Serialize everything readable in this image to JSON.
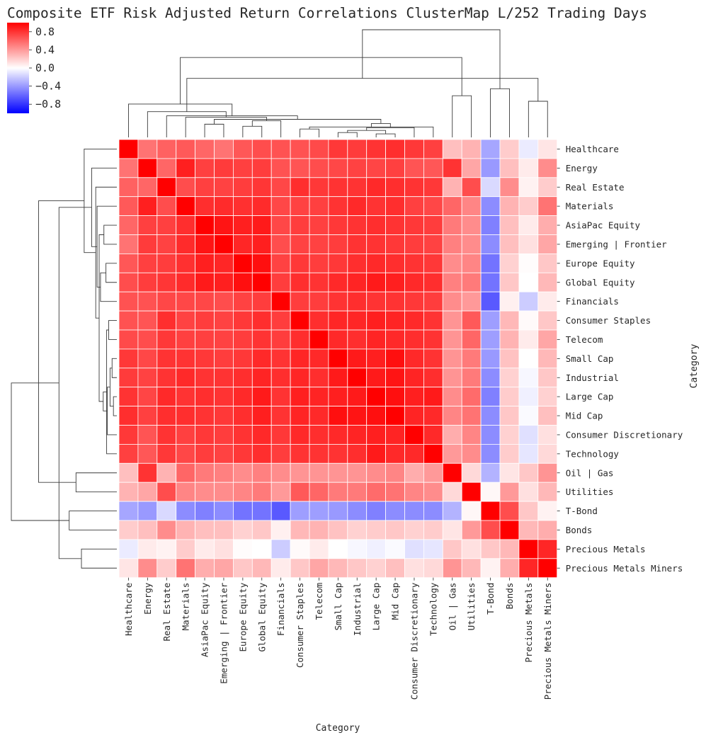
{
  "chart_data": {
    "type": "heatmap",
    "title": "Composite ETF Risk Adjusted Return Correlations ClusterMap L/252 Trading Days",
    "xlabel": "Category",
    "ylabel": "Category",
    "colormap": "bwr",
    "colors": {
      "low": "#0000ff",
      "mid": "#ffffff",
      "high": "#ff0000"
    },
    "vmin": -1.0,
    "vmax": 1.0,
    "colorbar_ticks": [
      0.8,
      0.4,
      0.0,
      -0.4,
      -0.8
    ],
    "colorbar_tick_labels": [
      "0.8",
      "0.4",
      "0.0",
      "−0.4",
      "−0.8"
    ],
    "categories": [
      "Healthcare",
      "Energy",
      "Real Estate",
      "Materials",
      "AsiaPac Equity",
      "Emerging | Frontier",
      "Europe Equity",
      "Global Equity",
      "Financials",
      "Consumer Staples",
      "Telecom",
      "Small Cap",
      "Industrial",
      "Large Cap",
      "Mid Cap",
      "Consumer Discretionary",
      "Technology",
      "Oil | Gas",
      "Utilities",
      "T-Bond",
      "Bonds",
      "Precious Metals",
      "Precious Metals Miners"
    ],
    "matrix": [
      [
        1.0,
        0.55,
        0.62,
        0.65,
        0.6,
        0.55,
        0.66,
        0.7,
        0.68,
        0.68,
        0.71,
        0.78,
        0.77,
        0.8,
        0.82,
        0.78,
        0.75,
        0.25,
        0.3,
        -0.35,
        0.2,
        -0.08,
        0.1
      ],
      [
        0.55,
        1.0,
        0.6,
        0.88,
        0.75,
        0.77,
        0.75,
        0.76,
        0.68,
        0.67,
        0.7,
        0.72,
        0.74,
        0.73,
        0.75,
        0.67,
        0.66,
        0.8,
        0.35,
        -0.4,
        0.25,
        0.08,
        0.45
      ],
      [
        0.62,
        0.6,
        1.0,
        0.7,
        0.75,
        0.74,
        0.76,
        0.79,
        0.72,
        0.82,
        0.78,
        0.8,
        0.8,
        0.84,
        0.82,
        0.8,
        0.78,
        0.3,
        0.7,
        -0.15,
        0.45,
        0.05,
        0.2
      ],
      [
        0.65,
        0.88,
        0.7,
        1.0,
        0.82,
        0.83,
        0.81,
        0.83,
        0.72,
        0.74,
        0.75,
        0.8,
        0.84,
        0.8,
        0.82,
        0.75,
        0.72,
        0.6,
        0.48,
        -0.45,
        0.3,
        0.2,
        0.55
      ],
      [
        0.6,
        0.75,
        0.75,
        0.82,
        1.0,
        0.92,
        0.88,
        0.9,
        0.72,
        0.76,
        0.75,
        0.78,
        0.8,
        0.82,
        0.8,
        0.78,
        0.76,
        0.52,
        0.45,
        -0.5,
        0.25,
        0.08,
        0.32
      ],
      [
        0.55,
        0.77,
        0.74,
        0.83,
        0.92,
        1.0,
        0.85,
        0.88,
        0.7,
        0.74,
        0.74,
        0.76,
        0.8,
        0.8,
        0.78,
        0.76,
        0.74,
        0.5,
        0.45,
        -0.45,
        0.25,
        0.12,
        0.35
      ],
      [
        0.66,
        0.75,
        0.76,
        0.81,
        0.88,
        0.85,
        1.0,
        0.94,
        0.74,
        0.78,
        0.76,
        0.78,
        0.82,
        0.84,
        0.82,
        0.8,
        0.78,
        0.45,
        0.48,
        -0.55,
        0.18,
        0.01,
        0.22
      ],
      [
        0.7,
        0.76,
        0.79,
        0.83,
        0.9,
        0.88,
        0.94,
        1.0,
        0.76,
        0.82,
        0.8,
        0.84,
        0.86,
        0.9,
        0.88,
        0.84,
        0.82,
        0.5,
        0.52,
        -0.55,
        0.22,
        0.0,
        0.28
      ],
      [
        0.68,
        0.68,
        0.72,
        0.72,
        0.72,
        0.7,
        0.74,
        0.76,
        1.0,
        0.76,
        0.76,
        0.8,
        0.82,
        0.8,
        0.8,
        0.78,
        0.76,
        0.45,
        0.4,
        -0.65,
        0.06,
        -0.2,
        0.08
      ],
      [
        0.68,
        0.67,
        0.82,
        0.74,
        0.76,
        0.74,
        0.78,
        0.82,
        0.76,
        1.0,
        0.82,
        0.85,
        0.85,
        0.88,
        0.86,
        0.84,
        0.8,
        0.42,
        0.65,
        -0.38,
        0.28,
        0.02,
        0.22
      ],
      [
        0.71,
        0.7,
        0.78,
        0.75,
        0.75,
        0.74,
        0.76,
        0.8,
        0.76,
        0.82,
        1.0,
        0.84,
        0.82,
        0.86,
        0.84,
        0.82,
        0.8,
        0.42,
        0.6,
        -0.38,
        0.3,
        0.08,
        0.35
      ],
      [
        0.78,
        0.72,
        0.8,
        0.8,
        0.78,
        0.76,
        0.78,
        0.84,
        0.8,
        0.85,
        0.84,
        1.0,
        0.9,
        0.88,
        0.94,
        0.84,
        0.8,
        0.42,
        0.52,
        -0.4,
        0.24,
        0.0,
        0.28
      ],
      [
        0.77,
        0.74,
        0.8,
        0.84,
        0.8,
        0.8,
        0.82,
        0.86,
        0.82,
        0.85,
        0.82,
        0.9,
        1.0,
        0.9,
        0.92,
        0.86,
        0.82,
        0.42,
        0.52,
        -0.45,
        0.18,
        -0.03,
        0.22
      ],
      [
        0.8,
        0.73,
        0.84,
        0.8,
        0.82,
        0.8,
        0.84,
        0.9,
        0.8,
        0.88,
        0.86,
        0.88,
        0.9,
        1.0,
        0.94,
        0.88,
        0.9,
        0.45,
        0.58,
        -0.5,
        0.2,
        -0.06,
        0.18
      ],
      [
        0.82,
        0.75,
        0.82,
        0.82,
        0.8,
        0.78,
        0.82,
        0.88,
        0.8,
        0.86,
        0.84,
        0.94,
        0.92,
        0.94,
        1.0,
        0.86,
        0.84,
        0.48,
        0.55,
        -0.45,
        0.22,
        -0.02,
        0.25
      ],
      [
        0.78,
        0.67,
        0.8,
        0.75,
        0.78,
        0.76,
        0.8,
        0.84,
        0.78,
        0.84,
        0.82,
        0.84,
        0.86,
        0.88,
        0.86,
        1.0,
        0.84,
        0.32,
        0.48,
        -0.45,
        0.18,
        -0.12,
        0.12
      ],
      [
        0.75,
        0.66,
        0.78,
        0.72,
        0.76,
        0.74,
        0.78,
        0.82,
        0.76,
        0.8,
        0.8,
        0.8,
        0.82,
        0.9,
        0.84,
        0.84,
        1.0,
        0.4,
        0.45,
        -0.45,
        0.2,
        -0.1,
        0.15
      ],
      [
        0.25,
        0.8,
        0.3,
        0.6,
        0.52,
        0.5,
        0.45,
        0.5,
        0.45,
        0.42,
        0.42,
        0.42,
        0.42,
        0.45,
        0.48,
        0.32,
        0.4,
        1.0,
        0.15,
        -0.3,
        0.1,
        0.22,
        0.42
      ],
      [
        0.3,
        0.35,
        0.7,
        0.48,
        0.45,
        0.45,
        0.48,
        0.52,
        0.4,
        0.65,
        0.6,
        0.52,
        0.52,
        0.58,
        0.55,
        0.48,
        0.45,
        0.15,
        1.0,
        0.03,
        0.4,
        0.12,
        0.28
      ],
      [
        -0.35,
        -0.4,
        -0.15,
        -0.45,
        -0.5,
        -0.45,
        -0.55,
        -0.55,
        -0.65,
        -0.38,
        -0.38,
        -0.4,
        -0.45,
        -0.5,
        -0.45,
        -0.45,
        -0.45,
        -0.3,
        0.03,
        1.0,
        0.7,
        0.22,
        0.05
      ],
      [
        0.2,
        0.25,
        0.45,
        0.3,
        0.25,
        0.25,
        0.18,
        0.22,
        0.06,
        0.28,
        0.3,
        0.24,
        0.18,
        0.2,
        0.22,
        0.18,
        0.2,
        0.1,
        0.4,
        0.7,
        1.0,
        0.28,
        0.32
      ],
      [
        -0.08,
        0.08,
        0.05,
        0.2,
        0.08,
        0.12,
        0.01,
        0.0,
        -0.2,
        0.02,
        0.08,
        0.0,
        -0.03,
        -0.06,
        -0.02,
        -0.12,
        -0.1,
        0.22,
        0.12,
        0.22,
        0.28,
        1.0,
        0.85
      ],
      [
        0.1,
        0.45,
        0.2,
        0.55,
        0.32,
        0.35,
        0.22,
        0.28,
        0.08,
        0.22,
        0.35,
        0.28,
        0.22,
        0.18,
        0.25,
        0.12,
        0.15,
        0.42,
        0.28,
        0.05,
        0.32,
        0.85,
        1.0
      ]
    ],
    "dendrogram_order": [
      "Healthcare",
      "Energy",
      "Real Estate",
      "Materials",
      "AsiaPac Equity",
      "Emerging | Frontier",
      "Europe Equity",
      "Global Equity",
      "Financials",
      "Consumer Staples",
      "Telecom",
      "Small Cap",
      "Industrial",
      "Large Cap",
      "Mid Cap",
      "Consumer Discretionary",
      "Technology",
      "Oil | Gas",
      "Utilities",
      "T-Bond",
      "Bonds",
      "Precious Metals",
      "Precious Metals Miners"
    ],
    "linkage": [
      [
        13,
        14,
        0.05
      ],
      [
        11,
        12,
        0.07
      ],
      [
        23,
        24,
        0.1
      ],
      [
        9,
        10,
        0.12
      ],
      [
        25,
        15,
        0.14
      ],
      [
        26,
        16,
        0.15
      ],
      [
        6,
        7,
        0.16
      ],
      [
        4,
        5,
        0.19
      ],
      [
        27,
        28,
        0.2
      ],
      [
        29,
        8,
        0.24
      ],
      [
        30,
        31,
        0.26
      ],
      [
        32,
        3,
        0.29
      ],
      [
        33,
        2,
        0.31
      ],
      [
        34,
        1,
        0.37
      ],
      [
        35,
        0,
        0.48
      ],
      [
        21,
        22,
        0.52
      ],
      [
        17,
        18,
        0.6
      ],
      [
        19,
        20,
        0.7
      ],
      [
        36,
        38,
        0.85
      ],
      [
        37,
        39,
        1.15
      ],
      [
        40,
        41,
        1.55
      ]
    ]
  }
}
